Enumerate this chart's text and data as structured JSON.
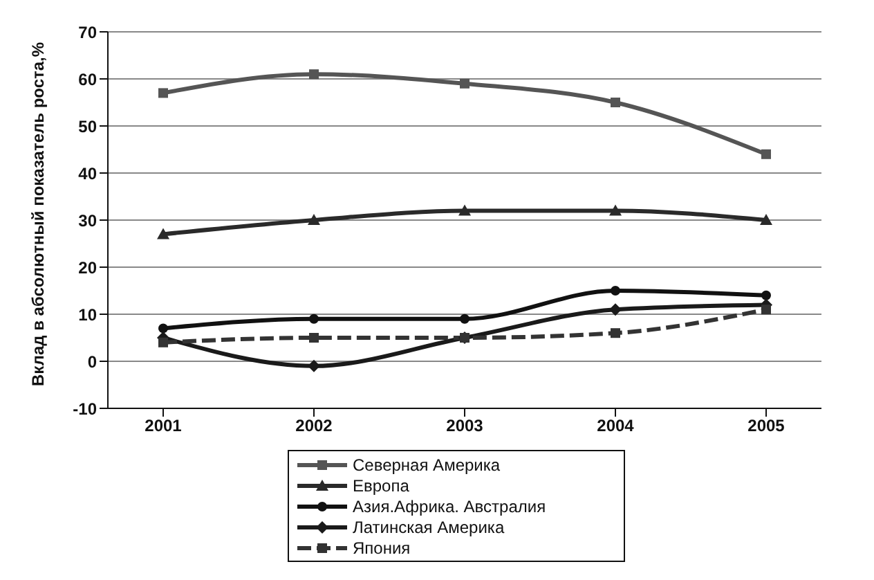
{
  "chart_data": {
    "type": "line",
    "ylabel": "Вклад в абсолютный показатель роста,%",
    "categories": [
      "2001",
      "2002",
      "2003",
      "2004",
      "2005"
    ],
    "ylim": [
      -10,
      70
    ],
    "yticks": [
      -10,
      0,
      10,
      20,
      30,
      40,
      50,
      60,
      70
    ],
    "grid": "y",
    "legend": "bottom",
    "series": [
      {
        "name": "Северная Америка",
        "color": "#555555",
        "marker": "square",
        "values": [
          57,
          61,
          59,
          55,
          44
        ]
      },
      {
        "name": "Европа",
        "color": "#2a2a2a",
        "marker": "triangle",
        "values": [
          27,
          30,
          32,
          32,
          30
        ]
      },
      {
        "name": "Азия.Африка. Австралия",
        "color": "#111111",
        "marker": "circle",
        "values": [
          7,
          9,
          9,
          15,
          14
        ]
      },
      {
        "name": "Латинская Америка",
        "color": "#1a1a1a",
        "marker": "diamond",
        "values": [
          5,
          -1,
          5,
          11,
          12
        ]
      },
      {
        "name": "Япония",
        "color": "#333333",
        "marker": "square",
        "line_style": "dashed",
        "values": [
          4,
          5,
          5,
          6,
          11
        ]
      }
    ]
  }
}
